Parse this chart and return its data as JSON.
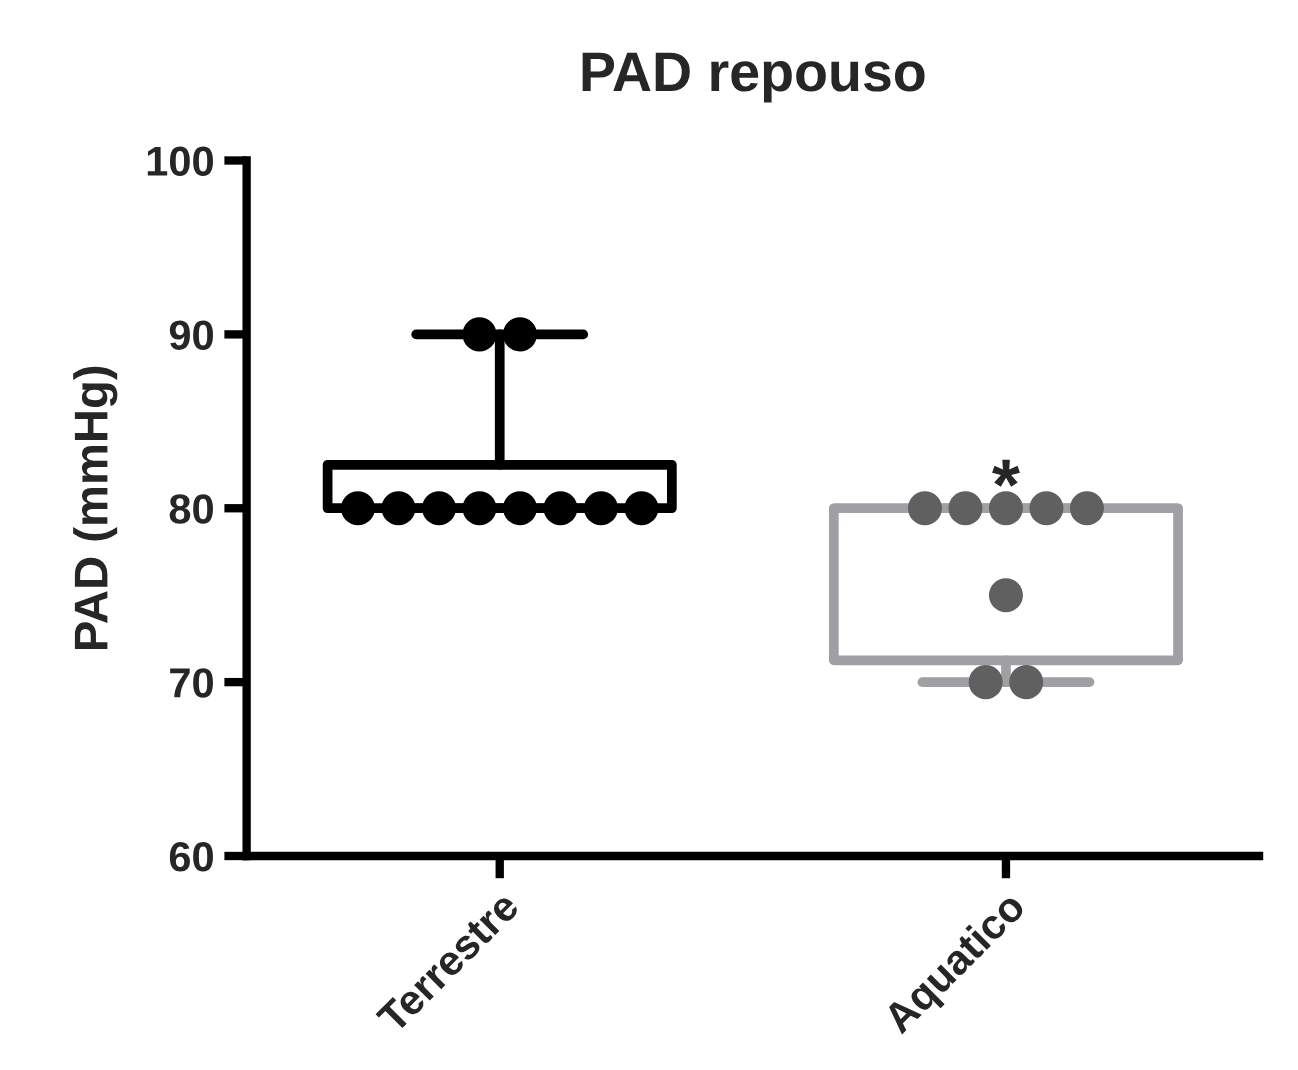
{
  "chart_data": {
    "type": "box",
    "title": "PAD repouso",
    "ylabel": "PAD (mmHg)",
    "categories": [
      "Terrestre",
      "Aquatico"
    ],
    "boxes": [
      {
        "low": 80,
        "q1": 80,
        "median": 80,
        "q3": 82.5,
        "high": 90
      },
      {
        "low": 70,
        "q1": 71.25,
        "median": 80,
        "q3": 80,
        "high": 80
      }
    ],
    "colors": [
      "#000000",
      "#a0a0a4"
    ],
    "series": [
      {
        "type": "scatter",
        "color": "#000000",
        "x": [
          "Terrestre",
          "Terrestre",
          "Terrestre",
          "Terrestre",
          "Terrestre",
          "Terrestre",
          "Terrestre",
          "Terrestre",
          "Terrestre",
          "Terrestre"
        ],
        "values": [
          80,
          80,
          80,
          80,
          80,
          80,
          80,
          80,
          90,
          90
        ]
      },
      {
        "type": "scatter",
        "color": "#606060",
        "x": [
          "Aquatico",
          "Aquatico",
          "Aquatico",
          "Aquatico",
          "Aquatico",
          "Aquatico",
          "Aquatico",
          "Aquatico"
        ],
        "values": [
          80,
          80,
          80,
          80,
          80,
          75,
          70,
          70
        ]
      }
    ],
    "marker": "circle",
    "grid": false,
    "legend": false,
    "ylim": [
      60,
      100
    ],
    "yticks": [
      60,
      70,
      80,
      90,
      100
    ],
    "annotations": [
      {
        "text": "*",
        "x": "Aquatico",
        "y": 81
      }
    ]
  }
}
